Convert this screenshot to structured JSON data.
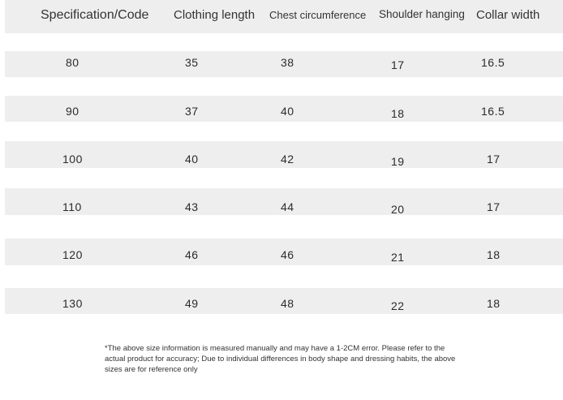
{
  "table": {
    "headers": [
      "Specification/Code",
      "Clothing length",
      "Chest circumference",
      "Shoulder hanging",
      "Collar width"
    ],
    "rows": [
      [
        "80",
        "35",
        "38",
        "17",
        "16.5"
      ],
      [
        "90",
        "37",
        "40",
        "18",
        "16.5"
      ],
      [
        "100",
        "40",
        "42",
        "19",
        "17"
      ],
      [
        "110",
        "43",
        "44",
        "20",
        "17"
      ],
      [
        "120",
        "46",
        "46",
        "21",
        "18"
      ],
      [
        "130",
        "49",
        "48",
        "22",
        "18"
      ]
    ]
  },
  "footnote": "*The above size information is measured manually and may have a 1-2CM error. Please refer to the actual product for accuracy; Due to individual differences in body shape and dressing habits, the above sizes are for reference only",
  "colors": {
    "row_band": "#eeeeee",
    "text": "#2b2b2b"
  }
}
